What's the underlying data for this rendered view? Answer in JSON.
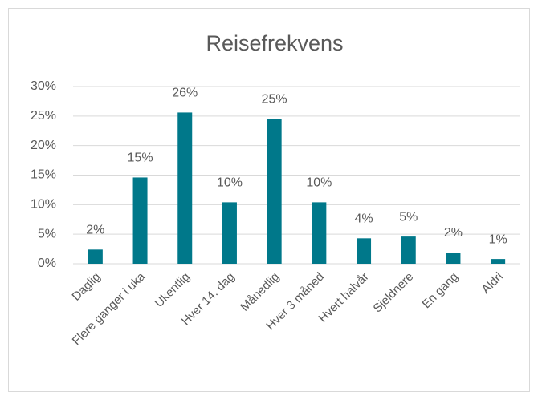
{
  "chart_data": {
    "type": "bar",
    "title": "Reisefrekvens",
    "categories": [
      "Daglig",
      "Flere ganger i uka",
      "Ukentlig",
      "Hver 14. dag",
      "Månedlig",
      "Hver 3 måned",
      "Hvert halvår",
      "Sjeldnere",
      "En gang",
      "Aldri"
    ],
    "values": [
      2.4,
      14.6,
      25.6,
      10.4,
      24.5,
      10.4,
      4.3,
      4.6,
      1.9,
      0.8
    ],
    "value_labels": [
      "2%",
      "15%",
      "26%",
      "10%",
      "25%",
      "10%",
      "4%",
      "5%",
      "2%",
      "1%"
    ],
    "color": "#00788a",
    "ylim": [
      0,
      30
    ],
    "yticks": [
      {
        "value": 0,
        "label": "0%"
      },
      {
        "value": 5,
        "label": "5%"
      },
      {
        "value": 10,
        "label": "10%"
      },
      {
        "value": 15,
        "label": "15%"
      },
      {
        "value": 20,
        "label": "20%"
      },
      {
        "value": 25,
        "label": "25%"
      },
      {
        "value": 30,
        "label": "30%"
      }
    ],
    "grid": true
  }
}
